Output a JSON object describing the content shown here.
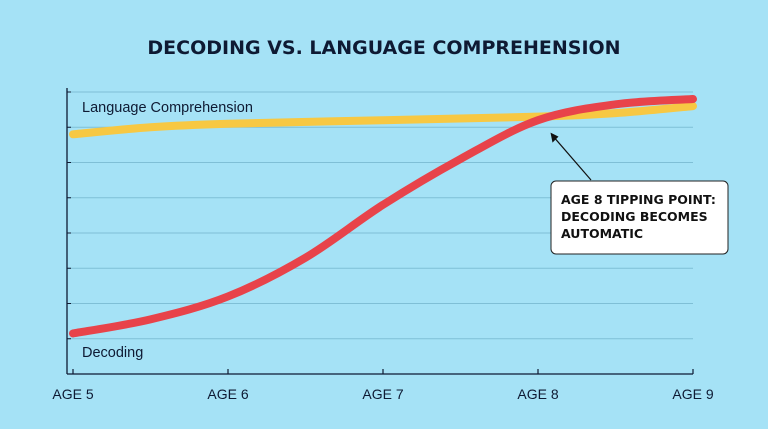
{
  "chart_data": {
    "type": "line",
    "title": "DECODING VS. LANGUAGE COMPREHENSION",
    "xlabel": "",
    "ylabel": "",
    "x_tick_labels": [
      "AGE 5",
      "AGE 6",
      "AGE 7",
      "AGE 8",
      "AGE 9"
    ],
    "xlim": [
      5,
      9
    ],
    "ylim": [
      0,
      8
    ],
    "grid": "horizontal",
    "series": [
      {
        "name": "Language Comprehension",
        "color": "#f7c843",
        "x": [
          5,
          5.5,
          6,
          7,
          8,
          8.5,
          9
        ],
        "y": [
          6.8,
          7.0,
          7.1,
          7.2,
          7.3,
          7.4,
          7.6
        ]
      },
      {
        "name": "Decoding",
        "color": "#e8434a",
        "x": [
          5,
          5.5,
          6,
          6.5,
          7,
          7.5,
          8,
          8.5,
          9
        ],
        "y": [
          1.15,
          1.55,
          2.2,
          3.3,
          4.8,
          6.1,
          7.2,
          7.65,
          7.8
        ]
      }
    ],
    "annotation": {
      "lines": [
        "AGE 8 TIPPING POINT:",
        "DECODING BECOMES",
        "AUTOMATIC"
      ],
      "points_to": {
        "x": 8.1,
        "y": 7.3
      }
    }
  }
}
